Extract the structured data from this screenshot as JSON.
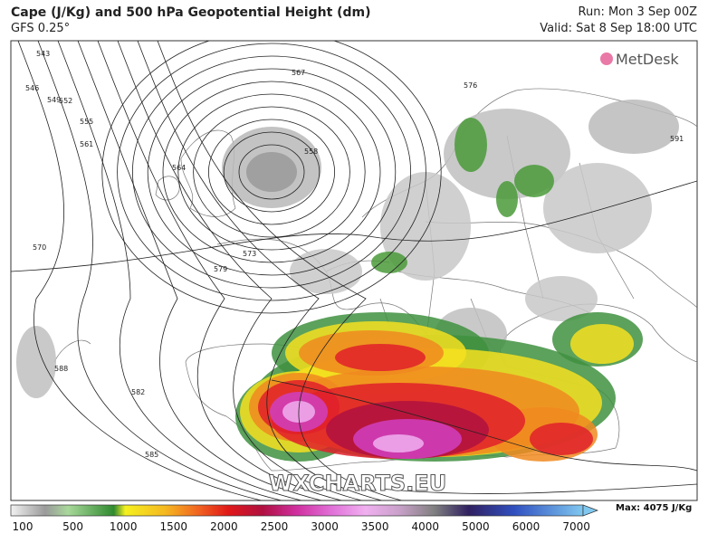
{
  "header": {
    "title": "Cape (J/Kg) and 500 hPa Geopotential Height (dm)",
    "subtitle": "GFS 0.25°",
    "run": "Run: Mon 3 Sep 00Z",
    "valid": "Valid: Sat 8 Sep 18:00 UTC"
  },
  "logo": "MetDesk",
  "watermark": "WXCHARTS.EU",
  "contour_labels": [
    "543",
    "546",
    "549",
    "552",
    "555",
    "558",
    "561",
    "564",
    "567",
    "570",
    "573",
    "576",
    "579",
    "582",
    "585",
    "588",
    "591"
  ],
  "colorbar": {
    "labels": [
      "100",
      "500",
      "1000",
      "1500",
      "2000",
      "2500",
      "3000",
      "3500",
      "4000",
      "5000",
      "6000",
      "7000"
    ],
    "max": "Max: 4075 J/Kg"
  }
}
